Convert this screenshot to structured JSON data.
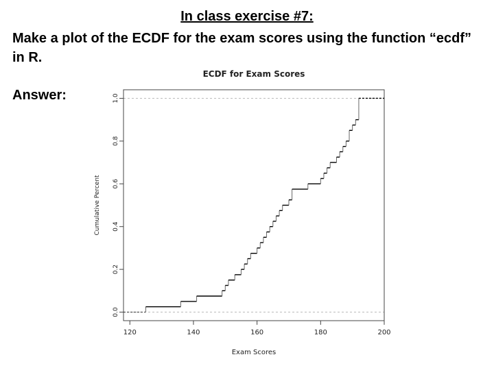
{
  "slide": {
    "title": "In class exercise #7:",
    "body": "Make a plot of the ECDF for the exam scores using the function “ecdf” in R.",
    "answer_label": "Answer:"
  },
  "chart_data": {
    "type": "line",
    "title": "ECDF for Exam Scores",
    "xlabel": "Exam Scores",
    "ylabel": "Cumulative Percent",
    "xlim": [
      118,
      200
    ],
    "ylim": [
      0,
      1.0
    ],
    "xticks": [
      120,
      140,
      160,
      180,
      200
    ],
    "yticks": [
      0.0,
      0.2,
      0.4,
      0.6,
      0.8,
      1.0
    ],
    "ytick_labels": [
      "0.0",
      "0.2",
      "0.4",
      "0.6",
      "0.8",
      "1.0"
    ],
    "step_function": true,
    "series": [
      {
        "x": [
          125,
          136,
          141,
          149,
          150,
          151,
          153,
          155,
          156,
          157,
          158,
          160,
          161,
          162,
          163,
          164,
          165,
          166,
          167,
          168,
          170,
          171,
          176,
          180,
          181,
          182,
          183,
          185,
          186,
          187,
          188,
          189,
          190,
          191,
          192
        ],
        "y": [
          0.025,
          0.05,
          0.075,
          0.1,
          0.125,
          0.15,
          0.175,
          0.2,
          0.225,
          0.25,
          0.275,
          0.3,
          0.325,
          0.35,
          0.375,
          0.4,
          0.425,
          0.45,
          0.475,
          0.5,
          0.525,
          0.575,
          0.6,
          0.625,
          0.65,
          0.675,
          0.7,
          0.725,
          0.75,
          0.775,
          0.8,
          0.85,
          0.875,
          0.9,
          1.0
        ]
      }
    ]
  }
}
